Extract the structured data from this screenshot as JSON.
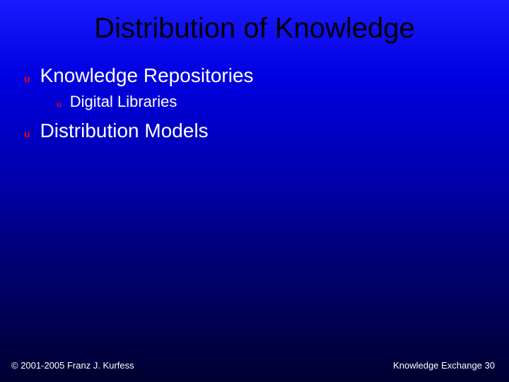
{
  "slide": {
    "title": "Distribution of Knowledge",
    "bullets": {
      "b1": {
        "text": "Knowledge Repositories"
      },
      "b1_1": {
        "text": "Digital Libraries"
      },
      "b2": {
        "text": "Distribution Models"
      }
    }
  },
  "footer": {
    "copyright": "© 2001-2005 Franz J. Kurfess",
    "topic": "Knowledge Exchange",
    "page": "30"
  },
  "style": {
    "title_color": "#000000",
    "text_color": "#ffffff",
    "bullet_color": "#ff0000",
    "background_gradient_top": "#1a1aff",
    "background_gradient_bottom": "#000030",
    "title_fontsize": 40,
    "body_fontsize": 28,
    "sub_fontsize": 22,
    "footer_fontsize": 13
  }
}
